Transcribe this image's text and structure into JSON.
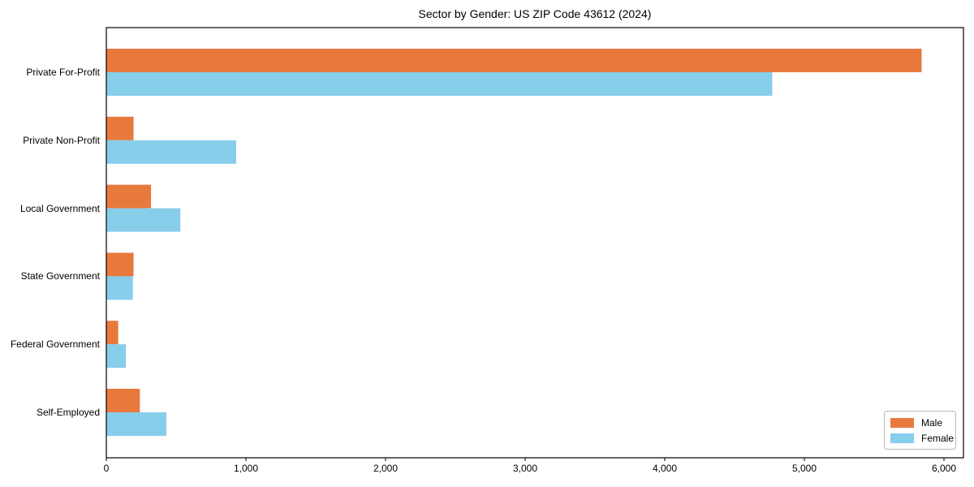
{
  "chart_data": {
    "type": "bar",
    "orientation": "horizontal",
    "title": "Sector by Gender: US ZIP Code 43612 (2024)",
    "categories": [
      "Private For-Profit",
      "Private Non-Profit",
      "Local Government",
      "State Government",
      "Federal Government",
      "Self-Employed"
    ],
    "series": [
      {
        "name": "Male",
        "color": "#E8793D",
        "values": [
          5840,
          195,
          320,
          195,
          85,
          240
        ]
      },
      {
        "name": "Female",
        "color": "#87CEEB",
        "values": [
          4770,
          930,
          530,
          190,
          140,
          430
        ]
      }
    ],
    "xlabel": "",
    "ylabel": "",
    "xlim": [
      0,
      6140
    ],
    "xticks": [
      0,
      1000,
      2000,
      3000,
      4000,
      5000,
      6000
    ],
    "xtick_labels": [
      "0",
      "1,000",
      "2,000",
      "3,000",
      "4,000",
      "5,000",
      "6,000"
    ],
    "grid": false,
    "legend": {
      "position": "lower-right"
    },
    "axis_color": "#000000",
    "background": "#ffffff"
  }
}
